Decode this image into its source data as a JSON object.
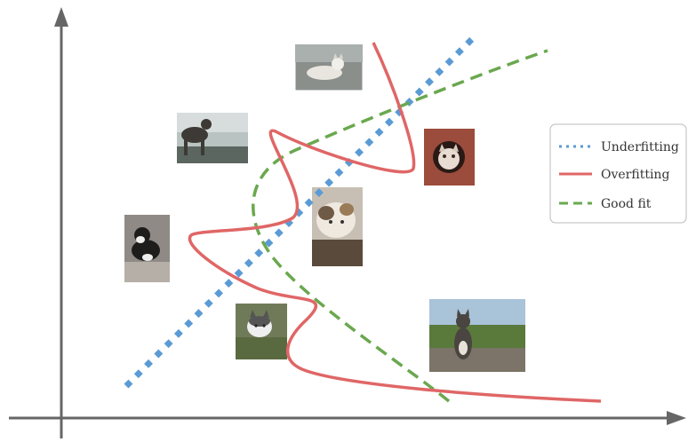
{
  "legend": {
    "items": [
      {
        "key": "underfitting",
        "label": "Underfitting",
        "color": "#5b9bd5",
        "style": "dotted"
      },
      {
        "key": "overfitting",
        "label": "Overfitting",
        "color": "#e06666",
        "style": "solid"
      },
      {
        "key": "good_fit",
        "label": "Good fit",
        "color": "#6aa84f",
        "style": "dashed"
      }
    ]
  },
  "images": [
    {
      "name": "husky-lying-photo",
      "subject": "husky lying on ground"
    },
    {
      "name": "dog-silhouette-photo",
      "subject": "dog on hill"
    },
    {
      "name": "cat-in-hole-photo",
      "subject": "cat peeking through hole"
    },
    {
      "name": "cat-lying-photo",
      "subject": "calico cat lying"
    },
    {
      "name": "puppy-photo",
      "subject": "black and white puppy"
    },
    {
      "name": "husky-puppy-photo",
      "subject": "husky puppy in grass"
    },
    {
      "name": "tabby-cat-photo",
      "subject": "tabby cat outdoors"
    }
  ],
  "colors": {
    "axis": "#666666",
    "legend_border": "#bbbbbb"
  }
}
